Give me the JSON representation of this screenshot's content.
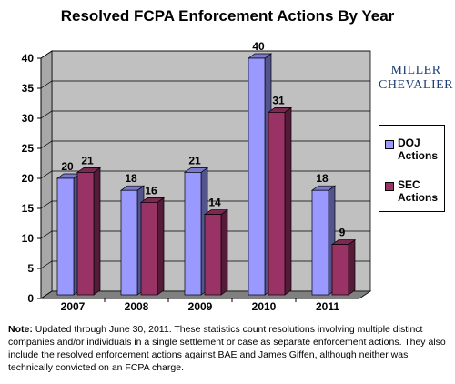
{
  "header": {
    "title": "Resolved FCPA Enforcement Actions By Year"
  },
  "brand": {
    "line1": "MILLER",
    "line2": "CHEVALIER"
  },
  "footnote": {
    "label": "Note:",
    "text": "Updated through June 30, 2011. These statistics count resolutions involving multiple distinct companies and/or individuals in a single settlement or case as separate enforcement actions. They also include the resolved enforcement actions against BAE and James Giffen, although neither was technically convicted on an FCPA charge."
  },
  "colors": {
    "doj": "#9999ff",
    "sec": "#993366",
    "wall": "#c0c0c0",
    "floor": "#808080"
  },
  "chart_data": {
    "type": "bar",
    "title": "Resolved FCPA Enforcement Actions By Year",
    "categories": [
      "2007",
      "2008",
      "2009",
      "2010",
      "2011"
    ],
    "series": [
      {
        "name": "DOJ Actions",
        "values": [
          20,
          18,
          21,
          40,
          18
        ]
      },
      {
        "name": "SEC Actions",
        "values": [
          21,
          16,
          14,
          31,
          9
        ]
      }
    ],
    "ylim": [
      0,
      40
    ],
    "yticks": [
      0,
      5,
      10,
      15,
      20,
      25,
      30,
      35,
      40
    ],
    "xlabel": "",
    "ylabel": "",
    "grid": true,
    "legend": "right",
    "style": "3d"
  }
}
